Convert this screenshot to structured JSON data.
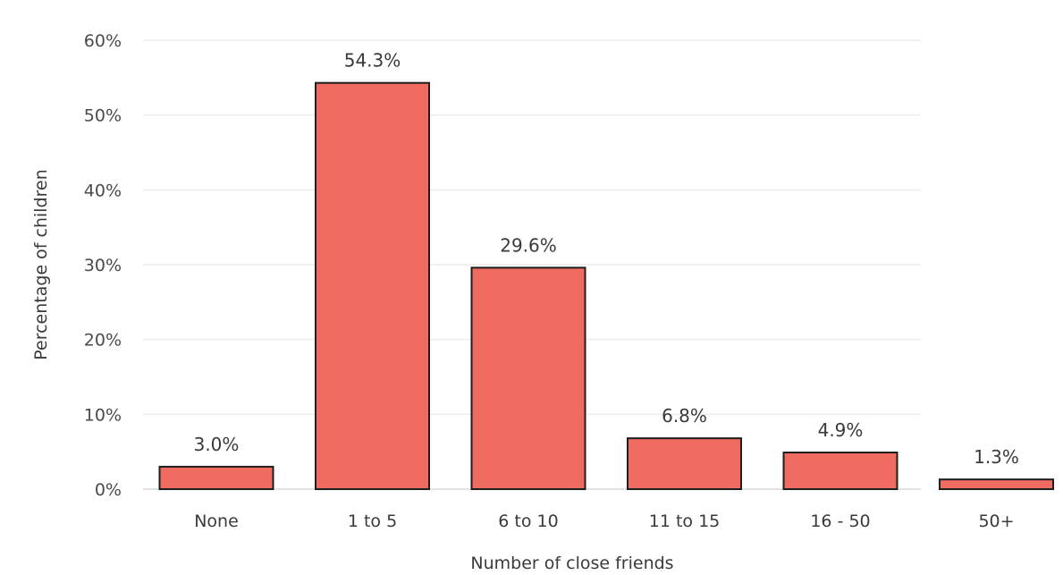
{
  "chart_data": {
    "type": "bar",
    "title": "",
    "xlabel": "Number of close friends",
    "ylabel": "Percentage of children",
    "categories": [
      "None",
      "1 to 5",
      "6 to 10",
      "11 to 15",
      "16 - 50",
      "50+"
    ],
    "values": [
      3.0,
      54.3,
      29.6,
      6.8,
      4.9,
      1.3
    ],
    "value_labels": [
      "3.0%",
      "54.3%",
      "29.6%",
      "6.8%",
      "4.9%",
      "1.3%"
    ],
    "ylim": [
      0,
      60
    ],
    "yticks": [
      0,
      10,
      20,
      30,
      40,
      50,
      60
    ],
    "ytick_labels": [
      "0%",
      "10%",
      "20%",
      "30%",
      "40%",
      "50%",
      "60%"
    ],
    "grid": true,
    "legend": "none",
    "bar_color": "#ef6b60",
    "bar_outline_color": "#1e1e1e"
  }
}
